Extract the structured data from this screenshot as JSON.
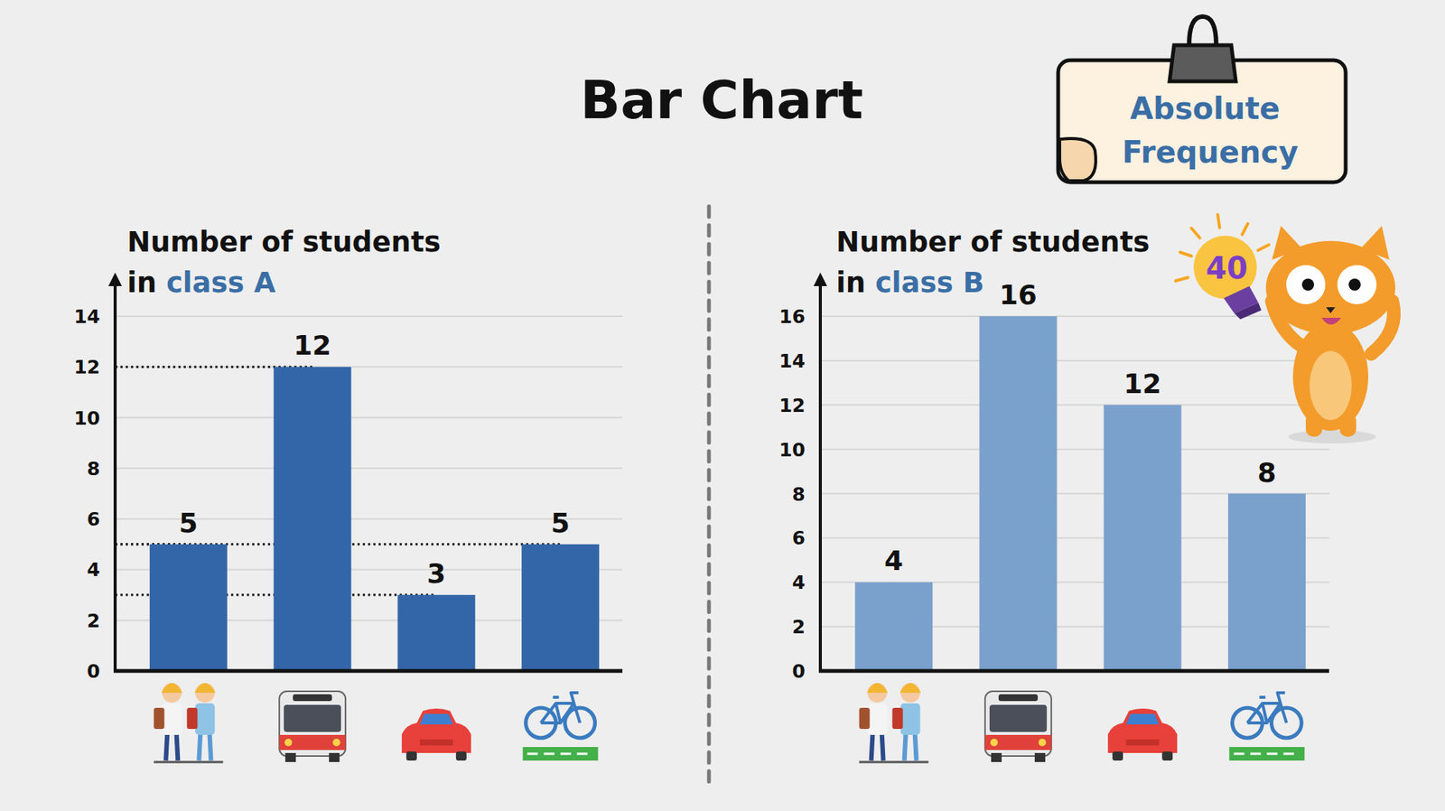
{
  "header": {
    "title": "Bar Chart",
    "note": "Absolute Frequency",
    "badge": 40
  },
  "chart_data": [
    {
      "type": "bar",
      "title": "Number of students in class A",
      "categories": [
        null,
        null,
        null,
        null
      ],
      "values": [
        5,
        12,
        3,
        5
      ],
      "color": "#3366a8",
      "ylim": [
        0,
        14
      ],
      "yticks": [
        0,
        2,
        4,
        6,
        8,
        10,
        12,
        14
      ],
      "grid": true,
      "data_labels": true,
      "tick_labels": "y"
    },
    {
      "type": "bar",
      "title": "Number of students in class B",
      "categories": [
        null,
        null,
        null,
        null
      ],
      "values": [
        4,
        16,
        12,
        8
      ],
      "color": "#7aa0cc",
      "ylim": [
        0,
        16
      ],
      "yticks": [
        0,
        2,
        4,
        6,
        8,
        10,
        12,
        14,
        16
      ],
      "grid": true,
      "data_labels": true,
      "tick_labels": "y"
    }
  ]
}
